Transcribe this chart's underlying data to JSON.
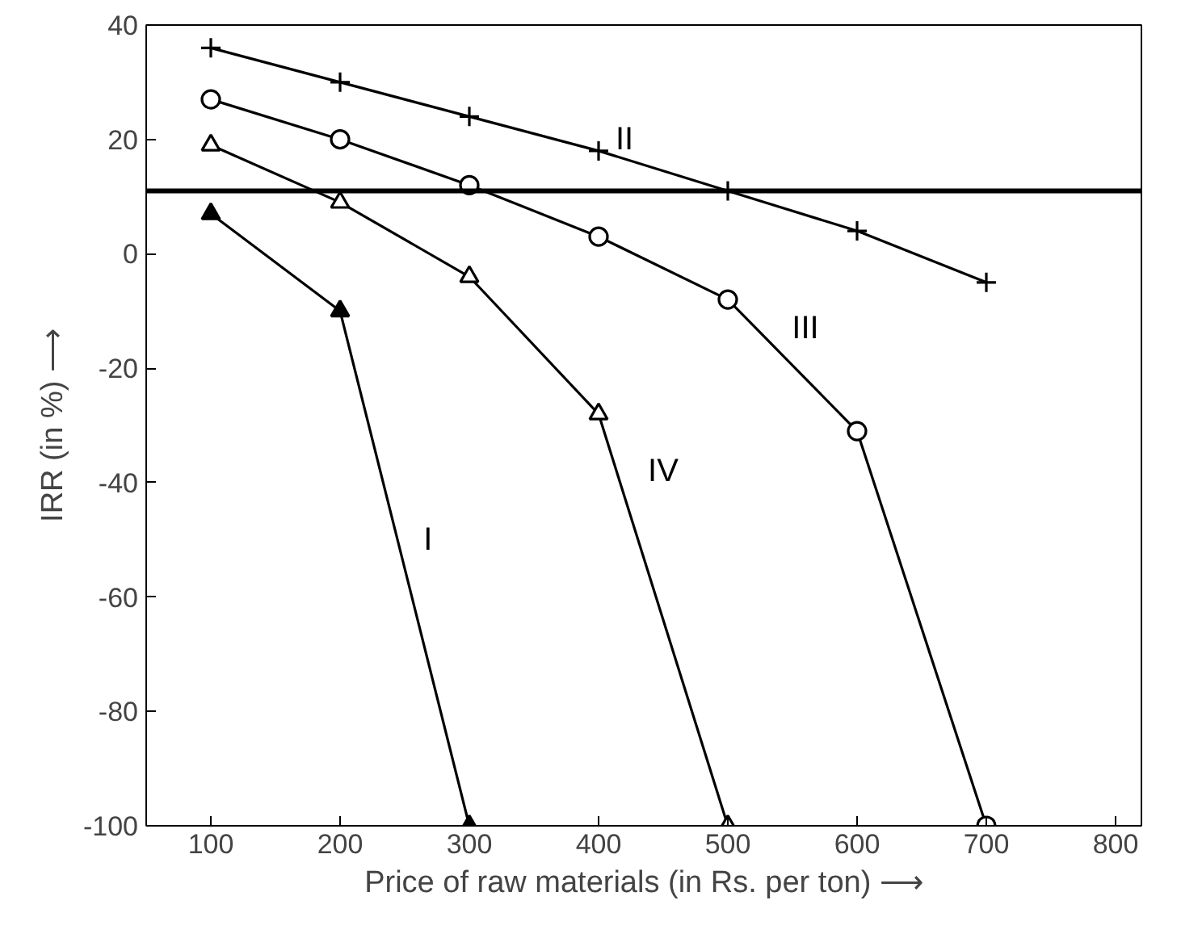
{
  "chart_data": {
    "type": "line",
    "xlabel": "Price of raw materials (in Rs. per ton) ⟶",
    "ylabel": "IRR (in %) ⟶",
    "x": [
      100,
      200,
      300,
      400,
      500,
      600,
      700
    ],
    "series": [
      {
        "name": "I",
        "color": "#000000",
        "marker": "triangle",
        "values": [
          7,
          -10,
          -100,
          null,
          null,
          null,
          null
        ]
      },
      {
        "name": "II",
        "color": "#000000",
        "marker": "cross",
        "values": [
          36,
          30,
          24,
          18,
          11,
          4,
          -5
        ]
      },
      {
        "name": "III",
        "color": "#000000",
        "marker": "circle",
        "values": [
          27,
          20,
          12,
          3,
          -8,
          -31,
          -100
        ]
      },
      {
        "name": "IV",
        "color": "#000000",
        "marker": "triangle",
        "values": [
          19,
          9,
          -4,
          -28,
          -100,
          null,
          null
        ]
      }
    ],
    "ref_lines": [
      {
        "axis": "y",
        "value": 11,
        "color": "#000000"
      }
    ],
    "xlim": [
      50,
      820
    ],
    "ylim": [
      -100,
      40
    ],
    "xticks": [
      100,
      200,
      300,
      400,
      500,
      600,
      700,
      800
    ],
    "yticks": [
      -100,
      -80,
      -60,
      -40,
      -20,
      0,
      20,
      40
    ],
    "grid": false,
    "line_style": "solid"
  }
}
